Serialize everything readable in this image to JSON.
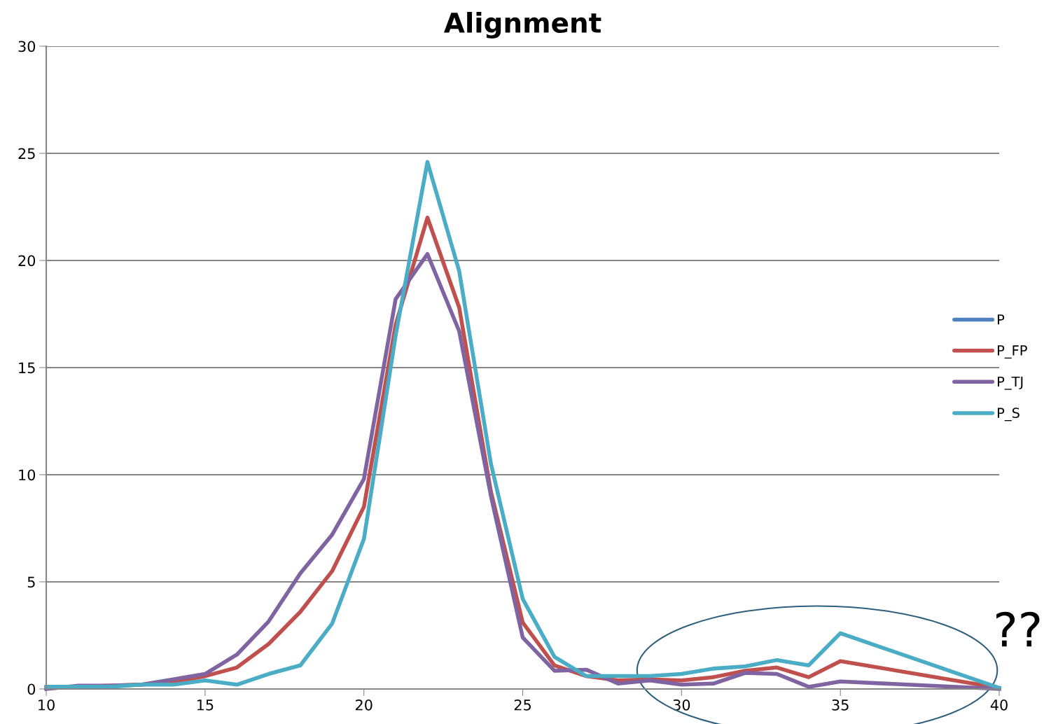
{
  "chart_data": {
    "type": "line",
    "title": "Alignment",
    "x": [
      10,
      11,
      12,
      13,
      14,
      15,
      16,
      17,
      18,
      19,
      20,
      21,
      22,
      23,
      24,
      25,
      26,
      27,
      28,
      29,
      30,
      31,
      32,
      33,
      34,
      35,
      40
    ],
    "series": [
      {
        "name": "P",
        "color": "#4f81bd",
        "values": [
          null,
          null,
          null,
          null,
          null,
          null,
          null,
          null,
          null,
          null,
          null,
          null,
          null,
          null,
          null,
          null,
          null,
          null,
          null,
          null,
          null,
          null,
          null,
          null,
          null,
          null,
          null
        ]
      },
      {
        "name": "P_FP",
        "color": "#c0504d",
        "values": [
          0.05,
          0.1,
          0.15,
          0.2,
          0.3,
          0.6,
          1.0,
          2.1,
          3.6,
          5.5,
          8.5,
          17,
          22,
          17.8,
          9.2,
          3.1,
          1.1,
          0.6,
          0.4,
          0.45,
          0.4,
          0.55,
          0.85,
          1.0,
          0.55,
          1.3,
          0.05
        ]
      },
      {
        "name": "P_TJ",
        "color": "#8064a2",
        "values": [
          0.0,
          0.15,
          0.15,
          0.2,
          0.45,
          0.7,
          1.6,
          3.15,
          5.4,
          7.2,
          9.8,
          18.2,
          20.3,
          16.7,
          9.0,
          2.4,
          0.85,
          0.9,
          0.25,
          0.4,
          0.2,
          0.25,
          0.75,
          0.7,
          0.1,
          0.35,
          0.0
        ]
      },
      {
        "name": "P_S",
        "color": "#4bacc6",
        "values": [
          0.1,
          0.1,
          0.1,
          0.2,
          0.2,
          0.4,
          0.2,
          0.7,
          1.1,
          3.05,
          7.0,
          16.5,
          24.6,
          19.5,
          10.5,
          4.2,
          1.5,
          0.6,
          0.6,
          0.6,
          0.7,
          0.95,
          1.05,
          1.35,
          1.1,
          2.6,
          0.05
        ]
      }
    ],
    "xlim": [
      10,
      40
    ],
    "xticks": [
      10,
      15,
      20,
      25,
      30,
      35,
      40
    ],
    "ylim": [
      0,
      30
    ],
    "yticks": [
      0,
      5,
      10,
      15,
      20,
      25,
      30
    ],
    "grid": "y",
    "legend": "right",
    "marker": "none",
    "line_style": "solid",
    "annotations": [
      "??"
    ]
  }
}
